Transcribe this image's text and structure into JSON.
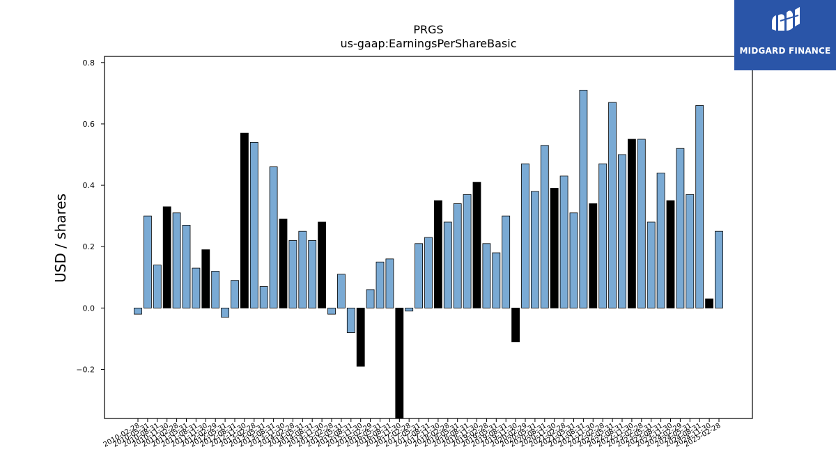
{
  "chart_data": {
    "type": "bar",
    "title": "PRGS",
    "subtitle": "us-gaap:EarningsPerShareBasic",
    "xlabel": "",
    "ylabel": "USD / shares",
    "ylim": [
      -0.36,
      0.82
    ],
    "yticks": [
      -0.2,
      0.0,
      0.2,
      0.4,
      0.6,
      0.8
    ],
    "ytick_labels": [
      "−0.2",
      "0.0",
      "0.2",
      "0.4",
      "0.6",
      "0.8"
    ],
    "grid": false,
    "colors": {
      "quarter": "#7aaad4",
      "annual": "#000000",
      "edge": "#000000"
    },
    "tick_labels": [
      "2010-02-28",
      "2010-05-31",
      "2010-08-31",
      "2010-11-30",
      "2011-02-28",
      "2011-05-31",
      "2011-08-31",
      "2011-11-30",
      "2012-02-29",
      "2012-05-31",
      "2012-08-31",
      "2012-11-30",
      "2013-02-28",
      "2013-05-31",
      "2013-08-31",
      "2013-11-30",
      "2014-02-28",
      "2014-05-31",
      "2014-08-31",
      "2014-11-30",
      "2015-02-28",
      "2015-05-31",
      "2015-08-31",
      "2015-11-30",
      "2016-02-29",
      "2016-05-31",
      "2016-08-31",
      "2016-11-30",
      "2017-02-28",
      "2017-05-31",
      "2017-08-31",
      "2017-11-30",
      "2018-02-28",
      "2018-05-31",
      "2018-08-31",
      "2018-11-30",
      "2019-02-28",
      "2019-05-31",
      "2019-08-31",
      "2019-11-30",
      "2020-02-29",
      "2020-05-31",
      "2020-08-31",
      "2020-11-30",
      "2021-02-28",
      "2021-05-31",
      "2021-08-31",
      "2021-11-30",
      "2022-02-28",
      "2022-05-31",
      "2022-08-31",
      "2022-11-30",
      "2023-02-28",
      "2023-05-31",
      "2023-08-31",
      "2023-11-30",
      "2024-02-29",
      "2024-05-31",
      "2024-08-31",
      "2024-11-30",
      "2025-02-28"
    ],
    "values": [
      -0.02,
      0.3,
      0.14,
      0.33,
      0.31,
      0.27,
      0.13,
      0.19,
      0.12,
      -0.03,
      0.09,
      0.57,
      0.54,
      0.07,
      0.46,
      0.29,
      0.22,
      0.25,
      0.22,
      0.28,
      -0.02,
      0.11,
      -0.08,
      -0.19,
      0.06,
      0.15,
      0.16,
      -0.38,
      -0.01,
      0.21,
      0.23,
      0.35,
      0.28,
      0.34,
      0.37,
      0.41,
      0.21,
      0.18,
      0.3,
      -0.11,
      0.47,
      0.38,
      0.53,
      0.39,
      0.43,
      0.31,
      0.71,
      0.34,
      0.47,
      0.67,
      0.5,
      0.55,
      0.55,
      0.28,
      0.44,
      0.35,
      0.52,
      0.37,
      0.66,
      0.03,
      0.25
    ],
    "annual": [
      false,
      false,
      false,
      true,
      false,
      false,
      false,
      true,
      false,
      false,
      false,
      true,
      false,
      false,
      false,
      true,
      false,
      false,
      false,
      true,
      false,
      false,
      false,
      true,
      false,
      false,
      false,
      true,
      false,
      false,
      false,
      true,
      false,
      false,
      false,
      true,
      false,
      false,
      false,
      true,
      false,
      false,
      false,
      true,
      false,
      false,
      false,
      true,
      false,
      false,
      false,
      true,
      false,
      false,
      false,
      true,
      false,
      false,
      false,
      true,
      false
    ]
  },
  "logo": {
    "text": "MIDGARD FINANCE",
    "bg": "#2a55a8"
  }
}
